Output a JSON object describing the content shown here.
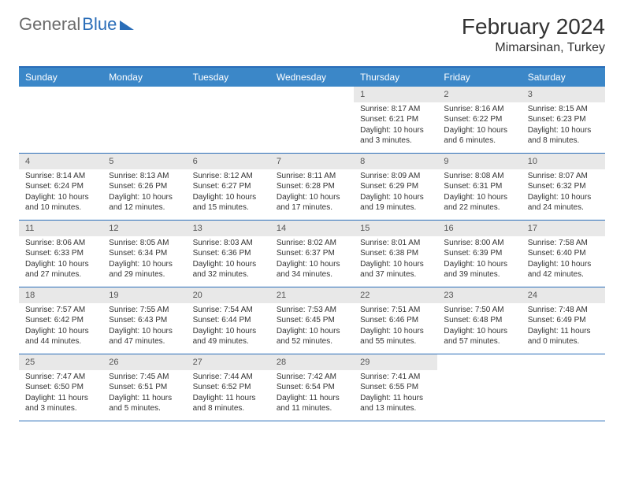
{
  "header": {
    "logo_general": "General",
    "logo_blue": "Blue",
    "month_title": "February 2024",
    "location": "Mimarsinan, Turkey"
  },
  "colors": {
    "brand_blue": "#2a6db8",
    "header_blue": "#3b87c8",
    "shade": "#e8e8e8",
    "text": "#333333",
    "muted": "#6b6b6b"
  },
  "day_names": [
    "Sunday",
    "Monday",
    "Tuesday",
    "Wednesday",
    "Thursday",
    "Friday",
    "Saturday"
  ],
  "weeks": [
    [
      {
        "empty": true
      },
      {
        "empty": true
      },
      {
        "empty": true
      },
      {
        "empty": true
      },
      {
        "day": "1",
        "sunrise": "Sunrise: 8:17 AM",
        "sunset": "Sunset: 6:21 PM",
        "daylight": "Daylight: 10 hours and 3 minutes."
      },
      {
        "day": "2",
        "sunrise": "Sunrise: 8:16 AM",
        "sunset": "Sunset: 6:22 PM",
        "daylight": "Daylight: 10 hours and 6 minutes."
      },
      {
        "day": "3",
        "sunrise": "Sunrise: 8:15 AM",
        "sunset": "Sunset: 6:23 PM",
        "daylight": "Daylight: 10 hours and 8 minutes."
      }
    ],
    [
      {
        "day": "4",
        "sunrise": "Sunrise: 8:14 AM",
        "sunset": "Sunset: 6:24 PM",
        "daylight": "Daylight: 10 hours and 10 minutes."
      },
      {
        "day": "5",
        "sunrise": "Sunrise: 8:13 AM",
        "sunset": "Sunset: 6:26 PM",
        "daylight": "Daylight: 10 hours and 12 minutes."
      },
      {
        "day": "6",
        "sunrise": "Sunrise: 8:12 AM",
        "sunset": "Sunset: 6:27 PM",
        "daylight": "Daylight: 10 hours and 15 minutes."
      },
      {
        "day": "7",
        "sunrise": "Sunrise: 8:11 AM",
        "sunset": "Sunset: 6:28 PM",
        "daylight": "Daylight: 10 hours and 17 minutes."
      },
      {
        "day": "8",
        "sunrise": "Sunrise: 8:09 AM",
        "sunset": "Sunset: 6:29 PM",
        "daylight": "Daylight: 10 hours and 19 minutes."
      },
      {
        "day": "9",
        "sunrise": "Sunrise: 8:08 AM",
        "sunset": "Sunset: 6:31 PM",
        "daylight": "Daylight: 10 hours and 22 minutes."
      },
      {
        "day": "10",
        "sunrise": "Sunrise: 8:07 AM",
        "sunset": "Sunset: 6:32 PM",
        "daylight": "Daylight: 10 hours and 24 minutes."
      }
    ],
    [
      {
        "day": "11",
        "sunrise": "Sunrise: 8:06 AM",
        "sunset": "Sunset: 6:33 PM",
        "daylight": "Daylight: 10 hours and 27 minutes."
      },
      {
        "day": "12",
        "sunrise": "Sunrise: 8:05 AM",
        "sunset": "Sunset: 6:34 PM",
        "daylight": "Daylight: 10 hours and 29 minutes."
      },
      {
        "day": "13",
        "sunrise": "Sunrise: 8:03 AM",
        "sunset": "Sunset: 6:36 PM",
        "daylight": "Daylight: 10 hours and 32 minutes."
      },
      {
        "day": "14",
        "sunrise": "Sunrise: 8:02 AM",
        "sunset": "Sunset: 6:37 PM",
        "daylight": "Daylight: 10 hours and 34 minutes."
      },
      {
        "day": "15",
        "sunrise": "Sunrise: 8:01 AM",
        "sunset": "Sunset: 6:38 PM",
        "daylight": "Daylight: 10 hours and 37 minutes."
      },
      {
        "day": "16",
        "sunrise": "Sunrise: 8:00 AM",
        "sunset": "Sunset: 6:39 PM",
        "daylight": "Daylight: 10 hours and 39 minutes."
      },
      {
        "day": "17",
        "sunrise": "Sunrise: 7:58 AM",
        "sunset": "Sunset: 6:40 PM",
        "daylight": "Daylight: 10 hours and 42 minutes."
      }
    ],
    [
      {
        "day": "18",
        "sunrise": "Sunrise: 7:57 AM",
        "sunset": "Sunset: 6:42 PM",
        "daylight": "Daylight: 10 hours and 44 minutes."
      },
      {
        "day": "19",
        "sunrise": "Sunrise: 7:55 AM",
        "sunset": "Sunset: 6:43 PM",
        "daylight": "Daylight: 10 hours and 47 minutes."
      },
      {
        "day": "20",
        "sunrise": "Sunrise: 7:54 AM",
        "sunset": "Sunset: 6:44 PM",
        "daylight": "Daylight: 10 hours and 49 minutes."
      },
      {
        "day": "21",
        "sunrise": "Sunrise: 7:53 AM",
        "sunset": "Sunset: 6:45 PM",
        "daylight": "Daylight: 10 hours and 52 minutes."
      },
      {
        "day": "22",
        "sunrise": "Sunrise: 7:51 AM",
        "sunset": "Sunset: 6:46 PM",
        "daylight": "Daylight: 10 hours and 55 minutes."
      },
      {
        "day": "23",
        "sunrise": "Sunrise: 7:50 AM",
        "sunset": "Sunset: 6:48 PM",
        "daylight": "Daylight: 10 hours and 57 minutes."
      },
      {
        "day": "24",
        "sunrise": "Sunrise: 7:48 AM",
        "sunset": "Sunset: 6:49 PM",
        "daylight": "Daylight: 11 hours and 0 minutes."
      }
    ],
    [
      {
        "day": "25",
        "sunrise": "Sunrise: 7:47 AM",
        "sunset": "Sunset: 6:50 PM",
        "daylight": "Daylight: 11 hours and 3 minutes."
      },
      {
        "day": "26",
        "sunrise": "Sunrise: 7:45 AM",
        "sunset": "Sunset: 6:51 PM",
        "daylight": "Daylight: 11 hours and 5 minutes."
      },
      {
        "day": "27",
        "sunrise": "Sunrise: 7:44 AM",
        "sunset": "Sunset: 6:52 PM",
        "daylight": "Daylight: 11 hours and 8 minutes."
      },
      {
        "day": "28",
        "sunrise": "Sunrise: 7:42 AM",
        "sunset": "Sunset: 6:54 PM",
        "daylight": "Daylight: 11 hours and 11 minutes."
      },
      {
        "day": "29",
        "sunrise": "Sunrise: 7:41 AM",
        "sunset": "Sunset: 6:55 PM",
        "daylight": "Daylight: 11 hours and 13 minutes."
      },
      {
        "empty": true
      },
      {
        "empty": true
      }
    ]
  ]
}
